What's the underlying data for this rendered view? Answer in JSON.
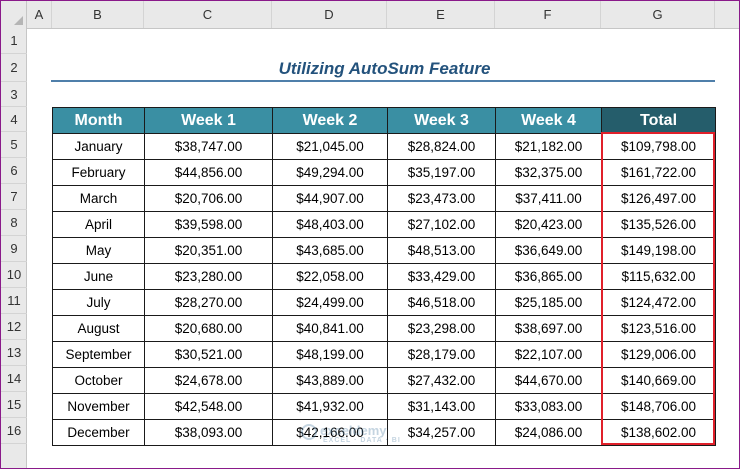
{
  "sheet": {
    "columns": [
      "A",
      "B",
      "C",
      "D",
      "E",
      "F",
      "G"
    ],
    "rows": [
      "1",
      "2",
      "3",
      "4",
      "5",
      "6",
      "7",
      "8",
      "9",
      "10",
      "11",
      "12",
      "13",
      "14",
      "15",
      "16"
    ]
  },
  "title": "Utilizing AutoSum Feature",
  "table": {
    "headers": [
      "Month",
      "Week 1",
      "Week 2",
      "Week 3",
      "Week 4",
      "Total"
    ],
    "rows": [
      [
        "January",
        "$38,747.00",
        "$21,045.00",
        "$28,824.00",
        "$21,182.00",
        "$109,798.00"
      ],
      [
        "February",
        "$44,856.00",
        "$49,294.00",
        "$35,197.00",
        "$32,375.00",
        "$161,722.00"
      ],
      [
        "March",
        "$20,706.00",
        "$44,907.00",
        "$23,473.00",
        "$37,411.00",
        "$126,497.00"
      ],
      [
        "April",
        "$39,598.00",
        "$48,403.00",
        "$27,102.00",
        "$20,423.00",
        "$135,526.00"
      ],
      [
        "May",
        "$20,351.00",
        "$43,685.00",
        "$48,513.00",
        "$36,649.00",
        "$149,198.00"
      ],
      [
        "June",
        "$23,280.00",
        "$22,058.00",
        "$33,429.00",
        "$36,865.00",
        "$115,632.00"
      ],
      [
        "July",
        "$28,270.00",
        "$24,499.00",
        "$46,518.00",
        "$25,185.00",
        "$124,472.00"
      ],
      [
        "August",
        "$20,680.00",
        "$40,841.00",
        "$23,298.00",
        "$38,697.00",
        "$123,516.00"
      ],
      [
        "September",
        "$30,521.00",
        "$48,199.00",
        "$28,179.00",
        "$22,107.00",
        "$129,006.00"
      ],
      [
        "October",
        "$24,678.00",
        "$43,889.00",
        "$27,432.00",
        "$44,670.00",
        "$140,669.00"
      ],
      [
        "November",
        "$42,548.00",
        "$41,932.00",
        "$31,143.00",
        "$33,083.00",
        "$148,706.00"
      ],
      [
        "December",
        "$38,093.00",
        "$42,166.00",
        "$34,257.00",
        "$24,086.00",
        "$138,602.00"
      ]
    ]
  },
  "watermark": {
    "name": "exceldemy",
    "tagline": "EXCEL · DATA · BI"
  },
  "colors": {
    "header_fill": "#3a8fa3",
    "total_header_fill": "#255d6b",
    "title_color": "#23527c",
    "highlight_border": "#e0202a"
  }
}
